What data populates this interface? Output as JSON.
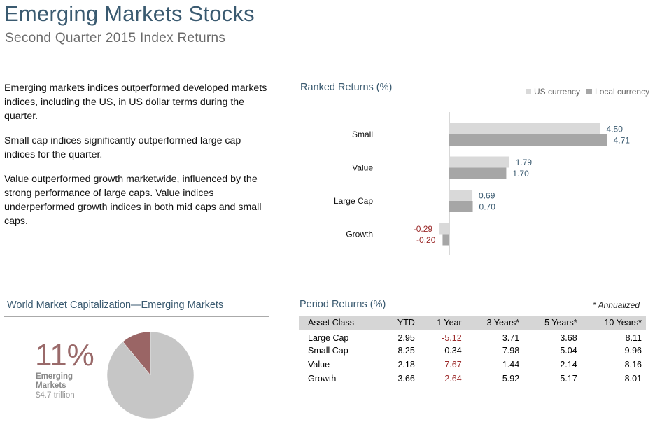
{
  "header": {
    "title": "Emerging Markets Stocks",
    "subtitle": "Second Quarter 2015 Index Returns"
  },
  "commentary": [
    "Emerging markets indices outperformed developed markets indices, including the US, in US dollar terms during the quarter.",
    "Small cap indices significantly outperformed large cap indices for the quarter.",
    "Value outperformed growth marketwide, influenced by the strong performance of large caps. Value indices underperformed growth indices in both mid caps and small caps."
  ],
  "ranked": {
    "title": "Ranked Returns (%)",
    "legend": {
      "us": "US currency",
      "local": "Local currency"
    }
  },
  "colors": {
    "us": "#d9d9d9",
    "local": "#a6a6a6",
    "negative": "#9b2a2a",
    "label": "#3a5a70",
    "pie_main": "#c6c6c6",
    "pie_slice": "#9a6565"
  },
  "chart_data": [
    {
      "type": "bar",
      "orientation": "horizontal",
      "title": "Ranked Returns (%)",
      "categories": [
        "Small",
        "Value",
        "Large Cap",
        "Growth"
      ],
      "series": [
        {
          "name": "US currency",
          "values": [
            4.5,
            1.79,
            0.69,
            -0.29
          ]
        },
        {
          "name": "Local currency",
          "values": [
            4.71,
            1.7,
            0.7,
            -0.2
          ]
        }
      ],
      "data_labels": {
        "US currency": [
          "4.50",
          "1.79",
          "0.69",
          "-0.29"
        ],
        "Local currency": [
          "4.71",
          "1.70",
          "0.70",
          "-0.20"
        ]
      },
      "legend": "top-right",
      "grid": false
    },
    {
      "type": "pie",
      "title": "World Market Capitalization—Emerging Markets",
      "slices": [
        {
          "name": "Emerging Markets",
          "value": 11
        },
        {
          "name": "",
          "value": 89
        }
      ]
    }
  ],
  "world_cap": {
    "title": "World Market Capitalization—Emerging Markets",
    "percent": "11%",
    "label": "Emerging Markets",
    "value": "$4.7 trillion"
  },
  "period": {
    "title": "Period Returns (%)",
    "note": "* Annualized",
    "headers": [
      "Asset Class",
      "YTD",
      "1 Year",
      "3 Years*",
      "5 Years*",
      "10 Years*"
    ],
    "rows": [
      [
        "Large Cap",
        "2.95",
        "-5.12",
        "3.71",
        "3.68",
        "8.11"
      ],
      [
        "Small Cap",
        "8.25",
        "0.34",
        "7.98",
        "5.04",
        "9.96"
      ],
      [
        "Value",
        "2.18",
        "-7.67",
        "1.44",
        "2.14",
        "8.16"
      ],
      [
        "Growth",
        "3.66",
        "-2.64",
        "5.92",
        "5.17",
        "8.01"
      ]
    ]
  }
}
